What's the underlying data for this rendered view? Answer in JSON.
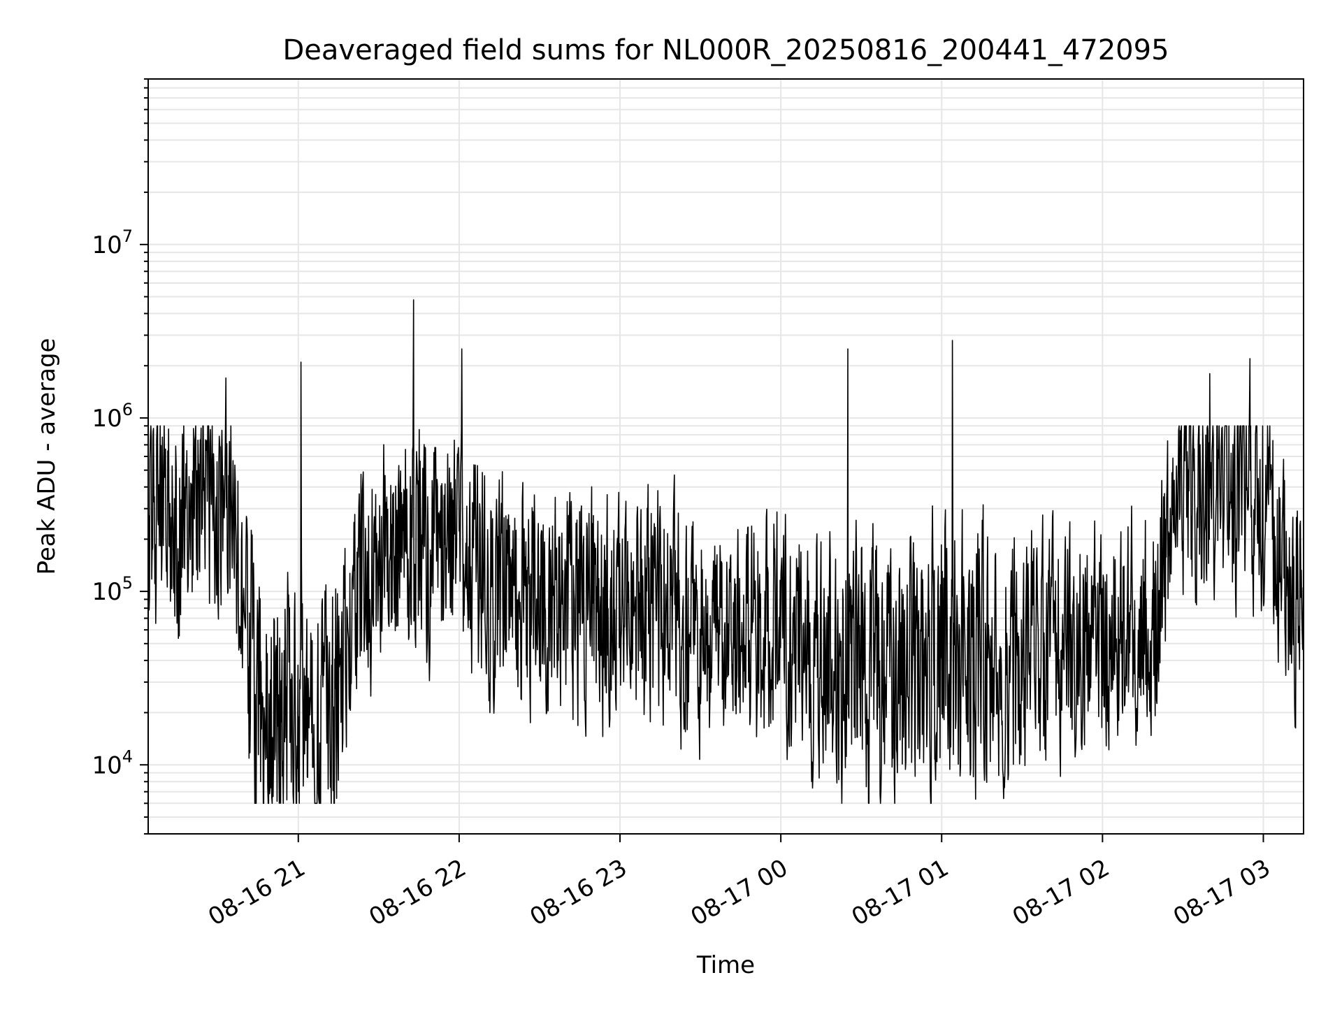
{
  "chart_data": {
    "type": "line",
    "title": "Deaveraged field sums for NL000R_20250816_200441_472095",
    "xlabel": "Time",
    "ylabel": "Peak ADU - average",
    "y_scale": "log",
    "ylim": [
      4000,
      90000000
    ],
    "xlim": [
      "2025-08-16 20:04",
      "2025-08-17 03:15"
    ],
    "x_tick_labels": [
      "08-16 21",
      "08-16 22",
      "08-16 23",
      "08-17 00",
      "08-17 01",
      "08-17 02",
      "08-17 03"
    ],
    "y_tick_labels": [
      {
        "base": "10",
        "exp": "4"
      },
      {
        "base": "10",
        "exp": "5"
      },
      {
        "base": "10",
        "exp": "6"
      },
      {
        "base": "10",
        "exp": "7"
      }
    ],
    "grid": true,
    "legend": "none",
    "line_color": "#000000",
    "series": [
      {
        "x": [
          "2025-08-16 20:05",
          "2025-08-16 20:10",
          "2025-08-16 20:15",
          "2025-08-16 20:20",
          "2025-08-16 20:25",
          "2025-08-16 20:30",
          "2025-08-16 20:33",
          "2025-08-16 20:35",
          "2025-08-16 20:40",
          "2025-08-16 20:45",
          "2025-08-16 20:50",
          "2025-08-16 20:55",
          "2025-08-16 21:00",
          "2025-08-16 21:01",
          "2025-08-16 21:05",
          "2025-08-16 21:10",
          "2025-08-16 21:15",
          "2025-08-16 21:20",
          "2025-08-16 21:25",
          "2025-08-16 21:30",
          "2025-08-16 21:35",
          "2025-08-16 21:40",
          "2025-08-16 21:43",
          "2025-08-16 21:45",
          "2025-08-16 21:50",
          "2025-08-16 21:55",
          "2025-08-16 22:01",
          "2025-08-16 22:05",
          "2025-08-16 22:10",
          "2025-08-16 22:20",
          "2025-08-16 22:30",
          "2025-08-16 22:40",
          "2025-08-16 22:50",
          "2025-08-16 23:00",
          "2025-08-16 23:10",
          "2025-08-16 23:20",
          "2025-08-16 23:30",
          "2025-08-16 23:40",
          "2025-08-16 23:50",
          "2025-08-17 00:00",
          "2025-08-17 00:10",
          "2025-08-17 00:20",
          "2025-08-17 00:25",
          "2025-08-17 00:30",
          "2025-08-17 00:40",
          "2025-08-17 00:50",
          "2025-08-17 01:00",
          "2025-08-17 01:04",
          "2025-08-17 01:10",
          "2025-08-17 01:20",
          "2025-08-17 01:30",
          "2025-08-17 01:40",
          "2025-08-17 01:50",
          "2025-08-17 02:00",
          "2025-08-17 02:10",
          "2025-08-17 02:20",
          "2025-08-17 02:25",
          "2025-08-17 02:30",
          "2025-08-17 02:35",
          "2025-08-17 02:40",
          "2025-08-17 02:45",
          "2025-08-17 02:50",
          "2025-08-17 02:55",
          "2025-08-17 03:00",
          "2025-08-17 03:05",
          "2025-08-17 03:10",
          "2025-08-17 03:15"
        ],
        "y": [
          250000,
          300000,
          200000,
          350000,
          400000,
          300000,
          1700000,
          250000,
          60000,
          20000,
          25000,
          22000,
          20000,
          2100000,
          18000,
          15000,
          20000,
          60000,
          120000,
          150000,
          180000,
          200000,
          4800000,
          200000,
          180000,
          170000,
          2500000,
          150000,
          120000,
          100000,
          90000,
          80000,
          80000,
          75000,
          70000,
          70000,
          65000,
          60000,
          60000,
          60000,
          50000,
          40000,
          2500000,
          35000,
          30000,
          30000,
          35000,
          2800000,
          35000,
          40000,
          40000,
          45000,
          50000,
          55000,
          60000,
          65000,
          200000,
          400000,
          350000,
          1800000,
          400000,
          350000,
          2200000,
          400000,
          150000,
          100000,
          80000
        ]
      }
    ]
  }
}
